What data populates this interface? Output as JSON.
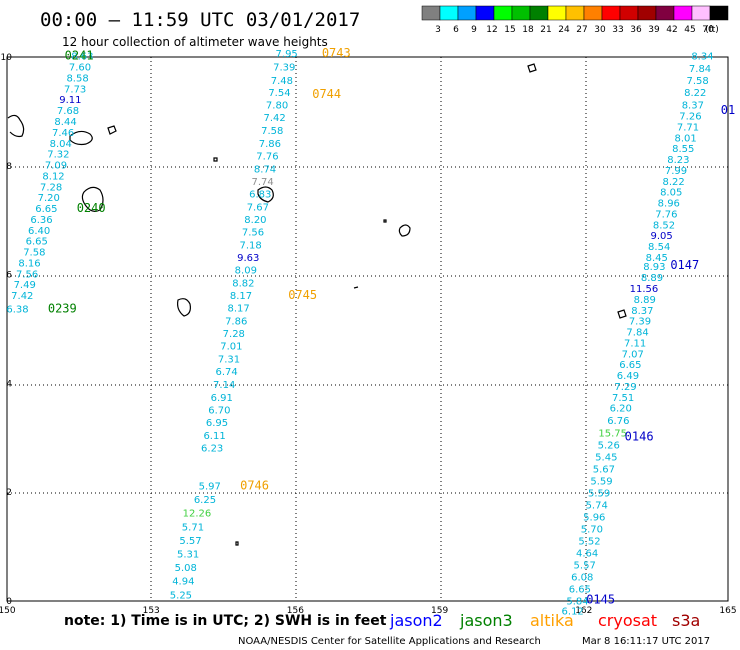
{
  "header": {
    "title": "00:00 — 11:59 UTC 03/01/2017",
    "subtitle": "12 hour collection of altimeter wave heights"
  },
  "legend": {
    "unit": "(ft)",
    "bins": [
      {
        "label": "3",
        "color": "#808080"
      },
      {
        "label": "6",
        "color": "#00ffff"
      },
      {
        "label": "9",
        "color": "#00a0ff"
      },
      {
        "label": "12",
        "color": "#0000ff"
      },
      {
        "label": "15",
        "color": "#00ff00"
      },
      {
        "label": "18",
        "color": "#00c000"
      },
      {
        "label": "21",
        "color": "#008000"
      },
      {
        "label": "24",
        "color": "#ffff00"
      },
      {
        "label": "27",
        "color": "#ffc000"
      },
      {
        "label": "30",
        "color": "#ff8000"
      },
      {
        "label": "33",
        "color": "#ff0000"
      },
      {
        "label": "36",
        "color": "#d00000"
      },
      {
        "label": "39",
        "color": "#a00000"
      },
      {
        "label": "42",
        "color": "#800040"
      },
      {
        "label": "45",
        "color": "#ff00ff"
      },
      {
        "label": "70",
        "color": "#ffc0ff"
      },
      {
        "label": "",
        "color": "#000000"
      }
    ]
  },
  "axes": {
    "x_ticks": [
      "150",
      "153",
      "156",
      "159",
      "162",
      "165"
    ],
    "y_ticks": [
      "0",
      "2",
      "4",
      "6",
      "8",
      "10"
    ]
  },
  "colors": {
    "cyan": "#00b4d8",
    "blue": "#0000c8",
    "green": "#008000",
    "lightgreen": "#40d040",
    "orange": "#f0a000",
    "gray": "#909090",
    "jason2": "#0000ff",
    "jason3": "#008000",
    "altika": "#ffa000",
    "cryosat": "#ff0000",
    "s3a": "#a00000"
  },
  "footer": {
    "note": "note:  1) Time is in UTC;  2) SWH is in feet",
    "missions": [
      "jason2",
      "jason3",
      "altika",
      "cryosat",
      "s3a"
    ],
    "credit": "NOAA/NESDIS Center for Satellite Applications and Research",
    "timestamp": "Mar  8 16:11:17 UTC 2017"
  },
  "tracks": [
    {
      "name": "track-jason3",
      "labels": [
        {
          "t": "0241",
          "lon": 151.2,
          "lat": 9.95
        },
        {
          "t": "0240",
          "lon": 151.45,
          "lat": 7.15
        },
        {
          "t": "0239",
          "lon": 150.85,
          "lat": 5.3
        }
      ],
      "points": [
        {
          "v": "8.63",
          "lon": 151.8,
          "lat": 9.95,
          "c": "cyan"
        },
        {
          "v": "7.60",
          "lon": 151.75,
          "lat": 9.75,
          "c": "cyan"
        },
        {
          "v": "8.58",
          "lon": 151.7,
          "lat": 9.55,
          "c": "cyan"
        },
        {
          "v": "7.73",
          "lon": 151.65,
          "lat": 9.35,
          "c": "cyan"
        },
        {
          "v": "9.11",
          "lon": 151.55,
          "lat": 9.15,
          "c": "blue"
        },
        {
          "v": "7.68",
          "lon": 151.5,
          "lat": 8.95,
          "c": "cyan"
        },
        {
          "v": "8.44",
          "lon": 151.45,
          "lat": 8.75,
          "c": "cyan"
        },
        {
          "v": "7.46",
          "lon": 151.4,
          "lat": 8.55,
          "c": "cyan"
        },
        {
          "v": "8.04",
          "lon": 151.35,
          "lat": 8.35,
          "c": "cyan"
        },
        {
          "v": "7.32",
          "lon": 151.3,
          "lat": 8.15,
          "c": "cyan"
        },
        {
          "v": "7.09",
          "lon": 151.25,
          "lat": 7.95,
          "c": "cyan"
        },
        {
          "v": "8.12",
          "lon": 151.2,
          "lat": 7.75,
          "c": "cyan"
        },
        {
          "v": "7.28",
          "lon": 151.15,
          "lat": 7.55,
          "c": "cyan"
        },
        {
          "v": "7.20",
          "lon": 151.1,
          "lat": 7.35,
          "c": "cyan"
        },
        {
          "v": "6.65",
          "lon": 151.05,
          "lat": 7.15,
          "c": "cyan"
        },
        {
          "v": "6.36",
          "lon": 150.95,
          "lat": 6.95,
          "c": "cyan"
        },
        {
          "v": "6.40",
          "lon": 150.9,
          "lat": 6.75,
          "c": "cyan"
        },
        {
          "v": "6.65",
          "lon": 150.85,
          "lat": 6.55,
          "c": "cyan"
        },
        {
          "v": "7.58",
          "lon": 150.8,
          "lat": 6.35,
          "c": "cyan"
        },
        {
          "v": "8.16",
          "lon": 150.7,
          "lat": 6.15,
          "c": "cyan"
        },
        {
          "v": "7.56",
          "lon": 150.65,
          "lat": 5.95,
          "c": "cyan"
        },
        {
          "v": "7.49",
          "lon": 150.6,
          "lat": 5.75,
          "c": "cyan"
        },
        {
          "v": "7.42",
          "lon": 150.55,
          "lat": 5.55,
          "c": "cyan"
        },
        {
          "v": "6.38",
          "lon": 150.45,
          "lat": 5.3,
          "c": "cyan"
        }
      ]
    },
    {
      "name": "track-altika",
      "labels": [
        {
          "t": "0743",
          "lon": 156.55,
          "lat": 10.0
        },
        {
          "t": "0744",
          "lon": 156.35,
          "lat": 9.25
        },
        {
          "t": "0745",
          "lon": 155.85,
          "lat": 5.55
        },
        {
          "t": "0746",
          "lon": 154.85,
          "lat": 2.05
        }
      ],
      "points": [
        {
          "v": "7.95",
          "lon": 156.05,
          "lat": 10.0,
          "c": "cyan"
        },
        {
          "v": "7.39",
          "lon": 156.0,
          "lat": 9.75,
          "c": "cyan"
        },
        {
          "v": "7.48",
          "lon": 155.95,
          "lat": 9.5,
          "c": "cyan"
        },
        {
          "v": "7.54",
          "lon": 155.9,
          "lat": 9.28,
          "c": "cyan"
        },
        {
          "v": "7.80",
          "lon": 155.85,
          "lat": 9.05,
          "c": "cyan"
        },
        {
          "v": "7.42",
          "lon": 155.8,
          "lat": 8.82,
          "c": "cyan"
        },
        {
          "v": "7.58",
          "lon": 155.75,
          "lat": 8.58,
          "c": "cyan"
        },
        {
          "v": "7.86",
          "lon": 155.7,
          "lat": 8.35,
          "c": "cyan"
        },
        {
          "v": "7.76",
          "lon": 155.65,
          "lat": 8.12,
          "c": "cyan"
        },
        {
          "v": "8.74",
          "lon": 155.6,
          "lat": 7.88,
          "c": "cyan"
        },
        {
          "v": "7.74",
          "lon": 155.55,
          "lat": 7.65,
          "c": "gray"
        },
        {
          "v": "6.83",
          "lon": 155.5,
          "lat": 7.42,
          "c": "cyan"
        },
        {
          "v": "7.67",
          "lon": 155.45,
          "lat": 7.18,
          "c": "cyan"
        },
        {
          "v": "8.20",
          "lon": 155.4,
          "lat": 6.95,
          "c": "cyan"
        },
        {
          "v": "7.56",
          "lon": 155.35,
          "lat": 6.72,
          "c": "cyan"
        },
        {
          "v": "7.18",
          "lon": 155.3,
          "lat": 6.48,
          "c": "cyan"
        },
        {
          "v": "9.63",
          "lon": 155.25,
          "lat": 6.25,
          "c": "blue"
        },
        {
          "v": "8.09",
          "lon": 155.2,
          "lat": 6.02,
          "c": "cyan"
        },
        {
          "v": "8.82",
          "lon": 155.15,
          "lat": 5.78,
          "c": "cyan"
        },
        {
          "v": "8.17",
          "lon": 155.1,
          "lat": 5.55,
          "c": "cyan"
        },
        {
          "v": "8.17",
          "lon": 155.05,
          "lat": 5.32,
          "c": "cyan"
        },
        {
          "v": "7.86",
          "lon": 155.0,
          "lat": 5.08,
          "c": "cyan"
        },
        {
          "v": "7.28",
          "lon": 154.95,
          "lat": 4.85,
          "c": "cyan"
        },
        {
          "v": "7.01",
          "lon": 154.9,
          "lat": 4.62,
          "c": "cyan"
        },
        {
          "v": "7.31",
          "lon": 154.85,
          "lat": 4.38,
          "c": "cyan"
        },
        {
          "v": "6.74",
          "lon": 154.8,
          "lat": 4.15,
          "c": "cyan"
        },
        {
          "v": "7.14",
          "lon": 154.75,
          "lat": 3.92,
          "c": "cyan"
        },
        {
          "v": "6.91",
          "lon": 154.7,
          "lat": 3.68,
          "c": "cyan"
        },
        {
          "v": "6.70",
          "lon": 154.65,
          "lat": 3.45,
          "c": "cyan"
        },
        {
          "v": "6.95",
          "lon": 154.6,
          "lat": 3.22,
          "c": "cyan"
        },
        {
          "v": "6.11",
          "lon": 154.55,
          "lat": 2.98,
          "c": "cyan"
        },
        {
          "v": "6.23",
          "lon": 154.5,
          "lat": 2.75,
          "c": "cyan"
        },
        {
          "v": "5.97",
          "lon": 154.45,
          "lat": 2.05,
          "c": "cyan"
        },
        {
          "v": "6.25",
          "lon": 154.35,
          "lat": 1.8,
          "c": "cyan"
        },
        {
          "v": "12.26",
          "lon": 154.25,
          "lat": 1.55,
          "c": "lightgreen"
        },
        {
          "v": "5.71",
          "lon": 154.1,
          "lat": 1.3,
          "c": "cyan"
        },
        {
          "v": "5.57",
          "lon": 154.05,
          "lat": 1.05,
          "c": "cyan"
        },
        {
          "v": "5.31",
          "lon": 154.0,
          "lat": 0.8,
          "c": "cyan"
        },
        {
          "v": "5.08",
          "lon": 153.95,
          "lat": 0.55,
          "c": "cyan"
        },
        {
          "v": "4.94",
          "lon": 153.9,
          "lat": 0.3,
          "c": "cyan"
        },
        {
          "v": "5.25",
          "lon": 153.85,
          "lat": 0.05,
          "c": "cyan"
        }
      ]
    },
    {
      "name": "track-jason2",
      "labels": [
        {
          "t": "01",
          "lon": 164.85,
          "lat": 8.95
        },
        {
          "t": "0147",
          "lon": 163.8,
          "lat": 6.1
        },
        {
          "t": "0146",
          "lon": 162.85,
          "lat": 2.95
        },
        {
          "t": "0145",
          "lon": 162.05,
          "lat": -0.05
        }
      ],
      "points": [
        {
          "v": "8.34",
          "lon": 164.7,
          "lat": 9.95,
          "c": "cyan"
        },
        {
          "v": "7.84",
          "lon": 164.65,
          "lat": 9.72,
          "c": "cyan"
        },
        {
          "v": "7.58",
          "lon": 164.6,
          "lat": 9.5,
          "c": "cyan"
        },
        {
          "v": "8.22",
          "lon": 164.55,
          "lat": 9.28,
          "c": "cyan"
        },
        {
          "v": "8.37",
          "lon": 164.5,
          "lat": 9.05,
          "c": "cyan"
        },
        {
          "v": "7.26",
          "lon": 164.45,
          "lat": 8.85,
          "c": "cyan"
        },
        {
          "v": "7.71",
          "lon": 164.4,
          "lat": 8.65,
          "c": "cyan"
        },
        {
          "v": "8.01",
          "lon": 164.35,
          "lat": 8.45,
          "c": "cyan"
        },
        {
          "v": "8.55",
          "lon": 164.3,
          "lat": 8.25,
          "c": "cyan"
        },
        {
          "v": "8.23",
          "lon": 164.2,
          "lat": 8.05,
          "c": "cyan"
        },
        {
          "v": "7.99",
          "lon": 164.15,
          "lat": 7.85,
          "c": "cyan"
        },
        {
          "v": "8.22",
          "lon": 164.1,
          "lat": 7.65,
          "c": "cyan"
        },
        {
          "v": "8.05",
          "lon": 164.05,
          "lat": 7.45,
          "c": "cyan"
        },
        {
          "v": "8.96",
          "lon": 164.0,
          "lat": 7.25,
          "c": "cyan"
        },
        {
          "v": "7.76",
          "lon": 163.95,
          "lat": 7.05,
          "c": "cyan"
        },
        {
          "v": "8.52",
          "lon": 163.9,
          "lat": 6.85,
          "c": "cyan"
        },
        {
          "v": "9.05",
          "lon": 163.85,
          "lat": 6.65,
          "c": "blue"
        },
        {
          "v": "8.54",
          "lon": 163.8,
          "lat": 6.45,
          "c": "cyan"
        },
        {
          "v": "8.45",
          "lon": 163.75,
          "lat": 6.25,
          "c": "cyan"
        },
        {
          "v": "8.93",
          "lon": 163.7,
          "lat": 6.08,
          "c": "cyan"
        },
        {
          "v": "8.89",
          "lon": 163.65,
          "lat": 5.88,
          "c": "cyan"
        },
        {
          "v": "11.56",
          "lon": 163.55,
          "lat": 5.68,
          "c": "blue"
        },
        {
          "v": "8.89",
          "lon": 163.5,
          "lat": 5.48,
          "c": "cyan"
        },
        {
          "v": "8.37",
          "lon": 163.45,
          "lat": 5.28,
          "c": "cyan"
        },
        {
          "v": "7.39",
          "lon": 163.4,
          "lat": 5.08,
          "c": "cyan"
        },
        {
          "v": "7.84",
          "lon": 163.35,
          "lat": 4.88,
          "c": "cyan"
        },
        {
          "v": "7.11",
          "lon": 163.3,
          "lat": 4.68,
          "c": "cyan"
        },
        {
          "v": "7.07",
          "lon": 163.25,
          "lat": 4.48,
          "c": "cyan"
        },
        {
          "v": "6.65",
          "lon": 163.2,
          "lat": 4.28,
          "c": "cyan"
        },
        {
          "v": "6.49",
          "lon": 163.15,
          "lat": 4.08,
          "c": "cyan"
        },
        {
          "v": "7.29",
          "lon": 163.1,
          "lat": 3.88,
          "c": "cyan"
        },
        {
          "v": "7.51",
          "lon": 163.05,
          "lat": 3.68,
          "c": "cyan"
        },
        {
          "v": "6.20",
          "lon": 163.0,
          "lat": 3.48,
          "c": "cyan"
        },
        {
          "v": "6.76",
          "lon": 162.95,
          "lat": 3.25,
          "c": "cyan"
        },
        {
          "v": "15.75",
          "lon": 162.9,
          "lat": 3.02,
          "c": "lightgreen"
        },
        {
          "v": "5.26",
          "lon": 162.75,
          "lat": 2.8,
          "c": "cyan"
        },
        {
          "v": "5.45",
          "lon": 162.7,
          "lat": 2.58,
          "c": "cyan"
        },
        {
          "v": "5.67",
          "lon": 162.65,
          "lat": 2.36,
          "c": "cyan"
        },
        {
          "v": "5.59",
          "lon": 162.6,
          "lat": 2.14,
          "c": "cyan"
        },
        {
          "v": "5.59",
          "lon": 162.55,
          "lat": 1.92,
          "c": "cyan"
        },
        {
          "v": "5.74",
          "lon": 162.5,
          "lat": 1.7,
          "c": "cyan"
        },
        {
          "v": "5.96",
          "lon": 162.45,
          "lat": 1.48,
          "c": "cyan"
        },
        {
          "v": "5.70",
          "lon": 162.4,
          "lat": 1.26,
          "c": "cyan"
        },
        {
          "v": "5.52",
          "lon": 162.35,
          "lat": 1.04,
          "c": "cyan"
        },
        {
          "v": "4.64",
          "lon": 162.3,
          "lat": 0.82,
          "c": "cyan"
        },
        {
          "v": "5.57",
          "lon": 162.25,
          "lat": 0.6,
          "c": "cyan"
        },
        {
          "v": "6.08",
          "lon": 162.2,
          "lat": 0.38,
          "c": "cyan"
        },
        {
          "v": "6.65",
          "lon": 162.15,
          "lat": 0.16,
          "c": "cyan"
        },
        {
          "v": "5.84",
          "lon": 162.1,
          "lat": -0.06,
          "c": "cyan"
        },
        {
          "v": "6.12",
          "lon": 162.0,
          "lat": -0.25,
          "c": "cyan"
        }
      ]
    }
  ]
}
